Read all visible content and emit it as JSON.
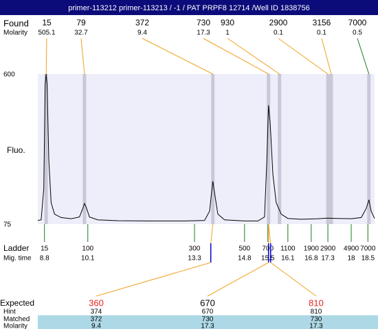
{
  "chart_data": {
    "type": "line",
    "title": "primer-113212  primer-113213 / -1 / PAT PRPF8 12714 /Well ID 1838756",
    "y_label": "Fluo.",
    "ylim": [
      75,
      600
    ],
    "yticks": [
      75,
      600
    ],
    "xlim": [
      8.6,
      18.7
    ],
    "x": [
      8.6,
      8.7,
      8.78,
      8.82,
      8.85,
      8.88,
      8.93,
      9.0,
      9.1,
      9.3,
      9.6,
      9.85,
      9.95,
      10.0,
      10.05,
      10.15,
      10.4,
      11,
      12,
      13,
      13.6,
      13.75,
      13.85,
      13.92,
      14.0,
      14.2,
      14.8,
      15.2,
      15.4,
      15.47,
      15.52,
      15.57,
      15.65,
      15.75,
      15.9,
      16.1,
      16.5,
      17,
      17.3,
      17.6,
      18.0,
      18.3,
      18.45,
      18.53,
      18.6,
      18.7
    ],
    "series": [
      {
        "color": "#000000",
        "values": [
          88,
          90,
          200,
          560,
          600,
          560,
          300,
          150,
          110,
          98,
          94,
          100,
          130,
          147,
          135,
          100,
          90,
          87,
          86,
          86,
          88,
          120,
          225,
          170,
          110,
          90,
          86,
          86,
          100,
          300,
          491,
          430,
          250,
          150,
          110,
          95,
          92,
          94,
          96,
          95,
          94,
          98,
          130,
          160,
          120,
          95
        ]
      }
    ],
    "found": {
      "label": "Found",
      "molarity_label": "Molarity",
      "sizes": [
        15,
        79,
        372,
        730,
        930,
        2900,
        3156,
        7000
      ],
      "molarity": [
        505.1,
        32.7,
        9.4,
        17.3,
        1,
        0.1,
        0.1,
        0.5
      ],
      "times": [
        8.85,
        10.0,
        13.85,
        15.52,
        15.85,
        17.3,
        17.4,
        18.53
      ]
    },
    "ladder": {
      "label": "Ladder",
      "time_label": "Mig. time",
      "sizes": [
        15,
        100,
        300,
        500,
        700,
        1100,
        1900,
        2900,
        4900,
        7000
      ],
      "times": [
        8.8,
        10.1,
        13.3,
        14.8,
        15.5,
        16.1,
        16.8,
        17.3,
        18,
        18.5
      ]
    },
    "expected": {
      "label": "Expected",
      "hint_label": "Hint",
      "matched_label": "Matched",
      "molarity_label": "Molarity",
      "sizes": [
        360,
        670,
        810
      ],
      "colors": [
        "#e8231f",
        "#000000",
        "#e8231f"
      ],
      "hint": [
        374,
        670,
        810
      ],
      "matched": [
        372,
        730,
        730
      ],
      "molarity": [
        9.4,
        17.3,
        17.3
      ]
    }
  }
}
